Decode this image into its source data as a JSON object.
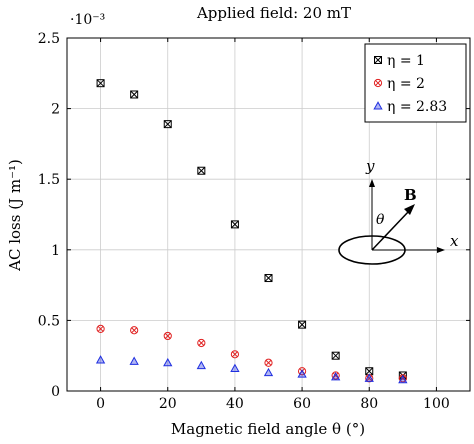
{
  "chart_data": {
    "type": "scatter",
    "title": "Applied field: 20 mT",
    "xlabel": "Magnetic field angle θ (°)",
    "ylabel": "AC loss (J m⁻¹)",
    "y_multiplier": "·10⁻³",
    "xlim": [
      -10,
      110
    ],
    "ylim": [
      0,
      2.5
    ],
    "x_ticks": [
      0,
      20,
      40,
      60,
      80,
      100
    ],
    "y_ticks": [
      0,
      0.5,
      1,
      1.5,
      2,
      2.5
    ],
    "x_tick_labels": [
      "0",
      "20",
      "40",
      "60",
      "80",
      "100"
    ],
    "y_tick_labels": [
      "0",
      "0.5",
      "1",
      "1.5",
      "2",
      "2.5"
    ],
    "grid": true,
    "legend_position": "top-right",
    "series": [
      {
        "name": "η = 1",
        "marker": "square-x",
        "color": "#000000",
        "x": [
          0,
          10,
          20,
          30,
          40,
          50,
          60,
          70,
          80,
          90
        ],
        "y": [
          2.18,
          2.1,
          1.89,
          1.56,
          1.18,
          0.8,
          0.47,
          0.25,
          0.14,
          0.11
        ]
      },
      {
        "name": "η = 2",
        "marker": "circle-x",
        "color": "#e02020",
        "x": [
          0,
          10,
          20,
          30,
          40,
          50,
          60,
          70,
          80,
          90
        ],
        "y": [
          0.44,
          0.43,
          0.39,
          0.34,
          0.26,
          0.2,
          0.14,
          0.11,
          0.09,
          0.09
        ]
      },
      {
        "name": "η = 2.83",
        "marker": "triangle",
        "color": "#1f2fe0",
        "x": [
          0,
          10,
          20,
          30,
          40,
          50,
          60,
          70,
          80,
          90
        ],
        "y": [
          0.22,
          0.21,
          0.2,
          0.18,
          0.16,
          0.13,
          0.12,
          0.1,
          0.09,
          0.08
        ]
      }
    ],
    "inset": {
      "y_axis_label": "y",
      "x_axis_label": "x",
      "field_label": "B",
      "angle_label": "θ"
    }
  }
}
